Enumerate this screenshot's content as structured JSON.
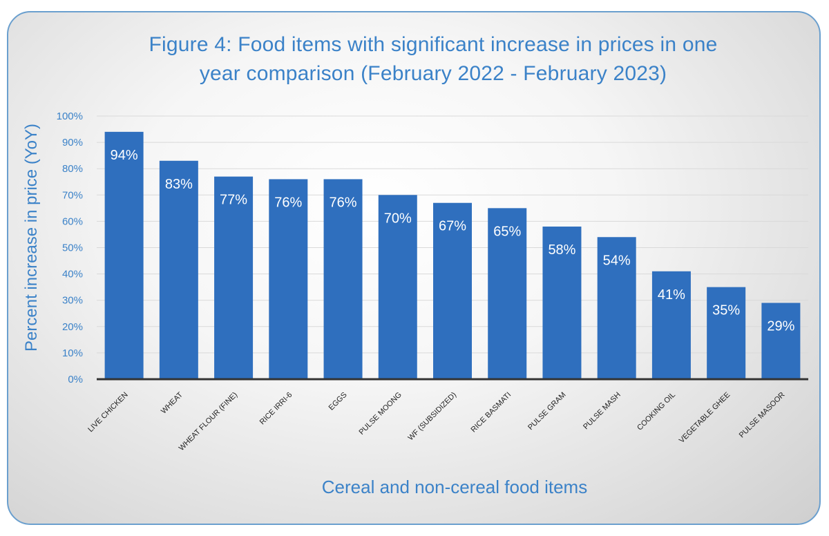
{
  "chart_data": {
    "type": "bar",
    "title": "Figure 4: Food items with significant increase in prices in one year comparison (February 2022 - February 2023)",
    "title_lines": [
      "Figure 4: Food items with significant increase in prices in one",
      "year comparison (February 2022 - February 2023)"
    ],
    "xlabel": "Cereal and non-cereal food items",
    "ylabel": "Percent increase in price (YoY)",
    "ylim": [
      0,
      100
    ],
    "yticks": [
      "0%",
      "10%",
      "20%",
      "30%",
      "40%",
      "50%",
      "60%",
      "70%",
      "80%",
      "90%",
      "100%"
    ],
    "grid": true,
    "categories": [
      "LIVE CHICKEN",
      "WHEAT",
      "WHEAT FLOUR (FINE)",
      "RICE IRRI-6",
      "EGGS",
      "PULSE MOONG",
      "WF (SUBSIDIZED)",
      "RICE BASMATI",
      "PULSE GRAM",
      "PULSE MASH",
      "COOKING OIL",
      "VEGETABLE GHEE",
      "PULSE MASOOR"
    ],
    "values": [
      94,
      83,
      77,
      76,
      76,
      70,
      67,
      65,
      58,
      54,
      41,
      35,
      29
    ],
    "data_labels": [
      "94%",
      "83%",
      "77%",
      "76%",
      "76%",
      "70%",
      "67%",
      "65%",
      "58%",
      "54%",
      "41%",
      "35%",
      "29%"
    ],
    "colors": {
      "bar": "#2f6fbe",
      "text": "#3b82c8",
      "axis": "#333333",
      "grid": "#d9d9d9",
      "frame": "#6a9fce"
    }
  }
}
